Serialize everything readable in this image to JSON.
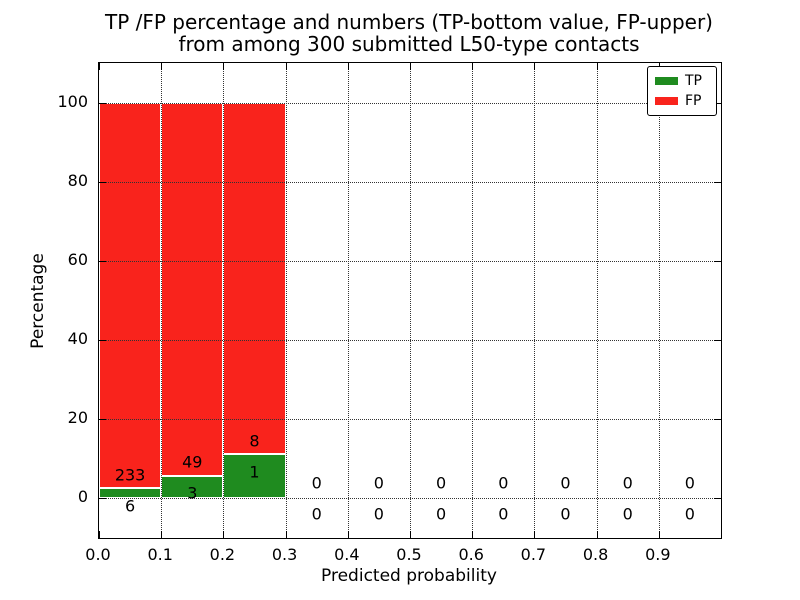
{
  "title": {
    "line1": "TP /FP percentage and numbers (TP-bottom value, FP-upper)",
    "line2": "from among 300 submitted L50-type contacts"
  },
  "legend": {
    "items": [
      {
        "label": "TP",
        "color": "#1f8b1f"
      },
      {
        "label": "FP",
        "color": "#f9231c"
      }
    ]
  },
  "colors": {
    "tp_green": "#1f8b1f",
    "fp_red": "#f9231c",
    "grid": "#333333",
    "spine": "#000000"
  },
  "chart_data": {
    "type": "bar",
    "stacked": true,
    "normalized_to_percent": true,
    "title": "TP /FP percentage and numbers (TP-bottom value, FP-upper) from among 300 submitted L50-type contacts",
    "xlabel": "Predicted probability",
    "ylabel": "Percentage",
    "bin_width": 0.1,
    "bin_starts": [
      0.0,
      0.1,
      0.2,
      0.3,
      0.4,
      0.5,
      0.6,
      0.7,
      0.8,
      0.9
    ],
    "series": [
      {
        "name": "TP",
        "color": "#1f8b1f",
        "values": [
          6,
          3,
          1,
          0,
          0,
          0,
          0,
          0,
          0,
          0
        ]
      },
      {
        "name": "FP",
        "color": "#f9231c",
        "values": [
          233,
          49,
          8,
          0,
          0,
          0,
          0,
          0,
          0,
          0
        ]
      }
    ],
    "bar_percentages": {
      "tp_percent": [
        2.51,
        5.77,
        11.11,
        0,
        0,
        0,
        0,
        0,
        0,
        0
      ],
      "fp_percent": [
        97.49,
        94.23,
        88.89,
        0,
        0,
        0,
        0,
        0,
        0,
        0
      ]
    },
    "total_contacts": 300,
    "xlim": [
      0.0,
      1.0
    ],
    "ylim": [
      -10,
      110
    ],
    "xtick_values": [
      0.0,
      0.1,
      0.2,
      0.3,
      0.4,
      0.5,
      0.6,
      0.7,
      0.8,
      0.9
    ],
    "xtick_labels": [
      "0.0",
      "0.1",
      "0.2",
      "0.3",
      "0.4",
      "0.5",
      "0.6",
      "0.7",
      "0.8",
      "0.9"
    ],
    "ytick_values": [
      0,
      20,
      40,
      60,
      80,
      100
    ],
    "ytick_labels": [
      "0",
      "20",
      "40",
      "60",
      "80",
      "100"
    ],
    "grid": "dotted, both axes, drawn above bars",
    "legend_position": "upper right",
    "bar_edge_color": "#ffffff"
  }
}
